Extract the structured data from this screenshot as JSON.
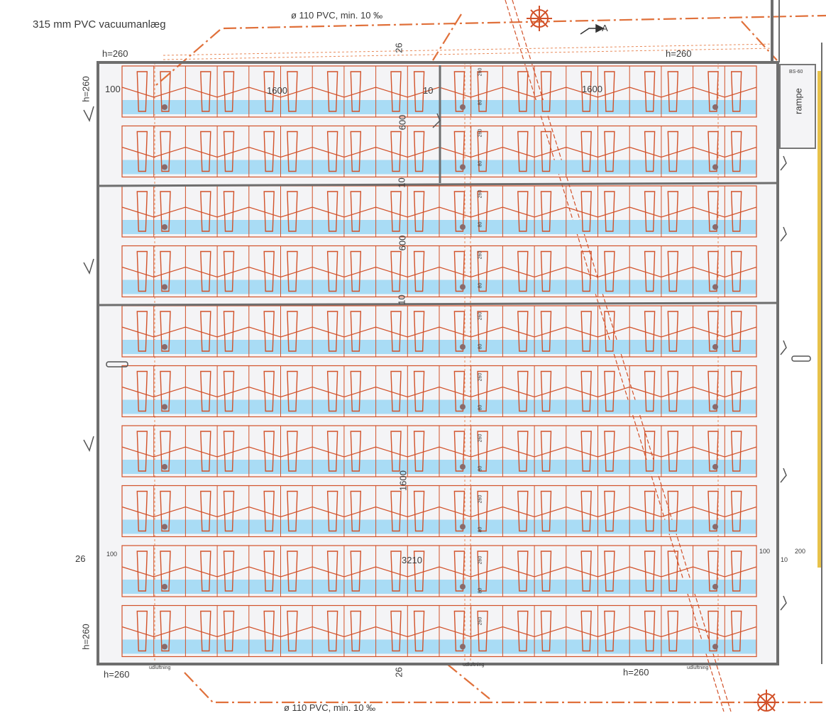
{
  "title_label": "315 mm PVC vacuumanlæg",
  "pipe_top_label": "ø 110 PVC, min. 10 ‰",
  "pipe_bottom_label": "ø 110 PVC, min. 10 ‰",
  "section_marker": "A",
  "rampe_label": "rampe",
  "rampe_code": "BS-60",
  "dims": {
    "h260_top_left": "h=260",
    "h260_top_right": "h=260",
    "h260_left_top": "h=260",
    "h260_left_bottom": "h=260",
    "h260_bottom_left": "h=260",
    "h260_bottom_right": "h=260",
    "d26_top": "26",
    "d26_bottom": "26",
    "d26_left": "26",
    "d100_top": "100",
    "d1600_left": "1600",
    "d10_top": "10",
    "d1600_right": "1600",
    "d600_a": "600",
    "d10_b": "10",
    "d600_b": "600",
    "d10_c": "10",
    "d1600_v": "1600",
    "d3210": "3210",
    "d100_left": "100",
    "d100_right": "100",
    "d10_right": "10",
    "d200_right": "200"
  },
  "corridor_marks": [
    "260",
    "80",
    "260",
    "80",
    "260",
    "80",
    "260",
    "80",
    "260",
    "80",
    "260",
    "80",
    "260",
    "80",
    "260",
    "80",
    "260",
    "80",
    "260"
  ],
  "udluftning_labels": [
    "udluftning",
    "udluftning",
    "udluftning"
  ],
  "colors": {
    "stall_outline": "#d2522a",
    "manure_channel": "#a9dcf5",
    "wall": "#6e6e6e",
    "pipe": "#e0703a",
    "floor": "#f4f4f6",
    "yellow_edge": "#e8c24a"
  },
  "layout": {
    "rows": 10,
    "stalls_per_row": 20
  }
}
